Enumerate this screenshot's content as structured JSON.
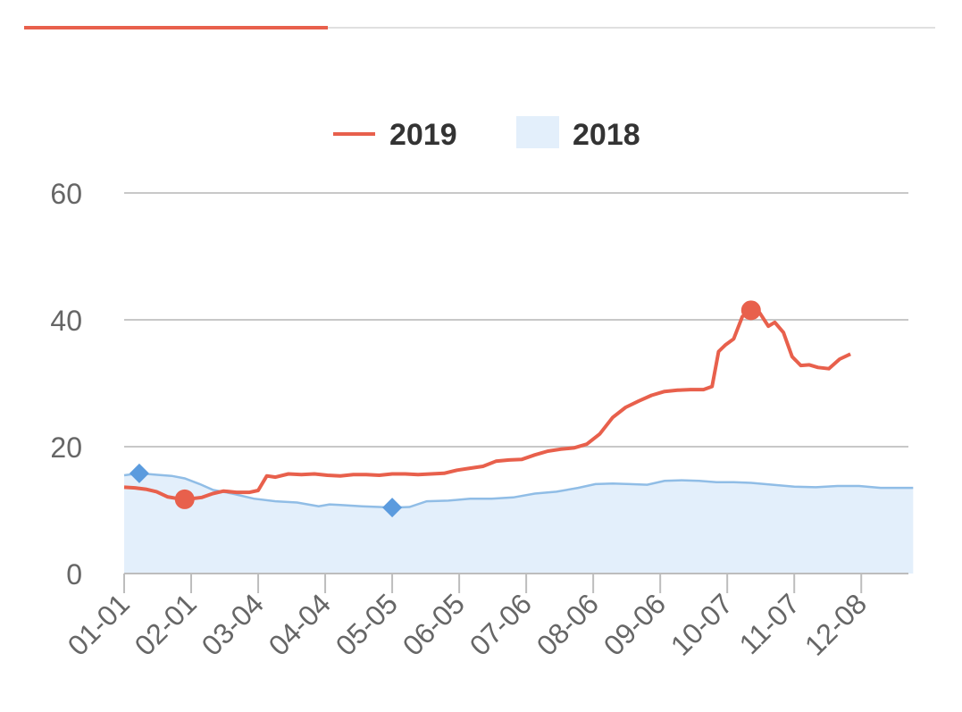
{
  "tabs": {
    "active_index": 0
  },
  "chart_data": {
    "type": "line",
    "title": "",
    "xlabel": "",
    "ylabel": "",
    "ylim": [
      0,
      60
    ],
    "yticks": [
      0,
      20,
      40,
      60
    ],
    "grid": true,
    "legend_position": "top-center",
    "x_tick_labels": [
      "01-01",
      "02-01",
      "03-04",
      "04-04",
      "05-05",
      "06-05",
      "07-06",
      "08-06",
      "09-06",
      "10-07",
      "11-07",
      "12-08"
    ],
    "x_tick_positions": [
      0,
      31,
      62,
      93,
      124,
      155,
      186,
      217,
      248,
      279,
      310,
      341
    ],
    "x_max": 365,
    "colors": {
      "2019": "#e8604c",
      "2018_line": "#90bde6",
      "2018_fill": "#e3effb",
      "2018_marker": "#5b9bde",
      "grid": "#c8c8c8",
      "axis": "#bdbdbd"
    },
    "series": [
      {
        "name": "2019",
        "style": "line",
        "points": [
          [
            0,
            13.6
          ],
          [
            5,
            13.5
          ],
          [
            10,
            13.3
          ],
          [
            15,
            12.9
          ],
          [
            20,
            12.1
          ],
          [
            25,
            11.8
          ],
          [
            28,
            11.7
          ],
          [
            31,
            11.8
          ],
          [
            36,
            12.0
          ],
          [
            41,
            12.6
          ],
          [
            46,
            13.0
          ],
          [
            52,
            12.8
          ],
          [
            58,
            12.8
          ],
          [
            62,
            13.1
          ],
          [
            66,
            15.4
          ],
          [
            70,
            15.2
          ],
          [
            76,
            15.7
          ],
          [
            82,
            15.6
          ],
          [
            88,
            15.7
          ],
          [
            94,
            15.5
          ],
          [
            100,
            15.4
          ],
          [
            106,
            15.6
          ],
          [
            112,
            15.6
          ],
          [
            118,
            15.5
          ],
          [
            124,
            15.7
          ],
          [
            130,
            15.7
          ],
          [
            136,
            15.6
          ],
          [
            142,
            15.7
          ],
          [
            148,
            15.8
          ],
          [
            154,
            16.3
          ],
          [
            160,
            16.6
          ],
          [
            166,
            16.9
          ],
          [
            172,
            17.7
          ],
          [
            178,
            17.9
          ],
          [
            184,
            18.0
          ],
          [
            190,
            18.7
          ],
          [
            196,
            19.3
          ],
          [
            202,
            19.6
          ],
          [
            208,
            19.8
          ],
          [
            214,
            20.4
          ],
          [
            220,
            22.0
          ],
          [
            226,
            24.6
          ],
          [
            232,
            26.2
          ],
          [
            238,
            27.2
          ],
          [
            244,
            28.1
          ],
          [
            250,
            28.7
          ],
          [
            256,
            28.9
          ],
          [
            262,
            29.0
          ],
          [
            268,
            29.0
          ],
          [
            272,
            29.5
          ],
          [
            275,
            35.0
          ],
          [
            278,
            36.0
          ],
          [
            282,
            37.0
          ],
          [
            286,
            40.5
          ],
          [
            290,
            41.5
          ],
          [
            294,
            41.1
          ],
          [
            298,
            39.0
          ],
          [
            301,
            39.6
          ],
          [
            305,
            38.0
          ],
          [
            309,
            34.2
          ],
          [
            313,
            32.8
          ],
          [
            317,
            32.9
          ],
          [
            321,
            32.5
          ],
          [
            326,
            32.3
          ],
          [
            331,
            33.8
          ],
          [
            336,
            34.6
          ]
        ],
        "markers": [
          {
            "x": 28,
            "y": 11.7
          },
          {
            "x": 290,
            "y": 41.5
          }
        ]
      },
      {
        "name": "2018",
        "style": "area",
        "points": [
          [
            0,
            15.5
          ],
          [
            7,
            15.8
          ],
          [
            14,
            15.6
          ],
          [
            22,
            15.4
          ],
          [
            28,
            15.0
          ],
          [
            35,
            14.1
          ],
          [
            41,
            13.2
          ],
          [
            50,
            12.6
          ],
          [
            60,
            11.8
          ],
          [
            70,
            11.4
          ],
          [
            80,
            11.2
          ],
          [
            85,
            10.9
          ],
          [
            90,
            10.6
          ],
          [
            95,
            10.9
          ],
          [
            100,
            10.8
          ],
          [
            110,
            10.6
          ],
          [
            118,
            10.5
          ],
          [
            124,
            10.4
          ],
          [
            132,
            10.5
          ],
          [
            140,
            11.4
          ],
          [
            150,
            11.5
          ],
          [
            160,
            11.8
          ],
          [
            170,
            11.8
          ],
          [
            180,
            12.0
          ],
          [
            190,
            12.6
          ],
          [
            200,
            12.9
          ],
          [
            210,
            13.5
          ],
          [
            218,
            14.1
          ],
          [
            226,
            14.2
          ],
          [
            234,
            14.1
          ],
          [
            242,
            14.0
          ],
          [
            250,
            14.6
          ],
          [
            258,
            14.7
          ],
          [
            266,
            14.6
          ],
          [
            274,
            14.4
          ],
          [
            282,
            14.4
          ],
          [
            290,
            14.3
          ],
          [
            300,
            14.0
          ],
          [
            310,
            13.7
          ],
          [
            320,
            13.6
          ],
          [
            330,
            13.8
          ],
          [
            340,
            13.8
          ],
          [
            350,
            13.5
          ],
          [
            360,
            13.5
          ],
          [
            365,
            13.5
          ]
        ],
        "markers": [
          {
            "x": 7,
            "y": 15.8
          },
          {
            "x": 124,
            "y": 10.4
          }
        ]
      }
    ]
  }
}
